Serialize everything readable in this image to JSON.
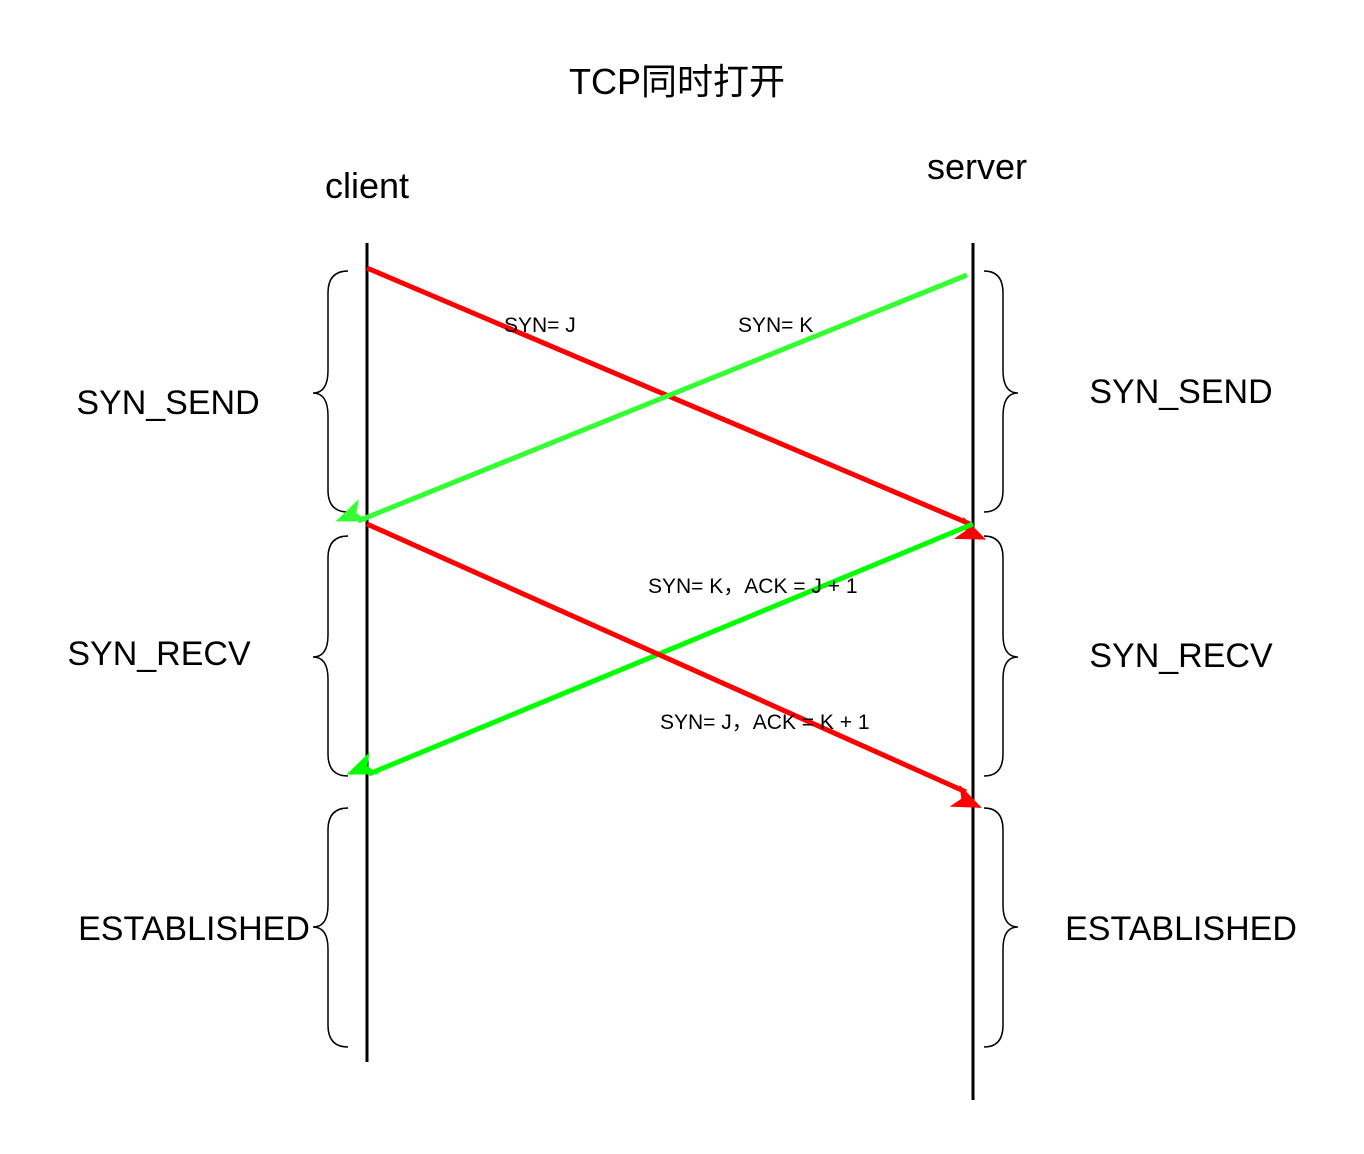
{
  "title": "TCP同时打开",
  "parties": {
    "client": "client",
    "server": "server"
  },
  "client_states": [
    "SYN_SEND",
    "SYN_RECV",
    "ESTABLISHED"
  ],
  "server_states": [
    "SYN_SEND",
    "SYN_RECV",
    "ESTABLISHED"
  ],
  "messages": [
    {
      "label": "SYN= J",
      "from": "client",
      "to": "server",
      "color": "#ff0000"
    },
    {
      "label": "SYN= K",
      "from": "server",
      "to": "client",
      "color": "#33ff33"
    },
    {
      "label": "SYN= K，ACK = J + 1",
      "from": "server",
      "to": "client",
      "color": "#00ff00"
    },
    {
      "label": "SYN= J，ACK = K + 1",
      "from": "client",
      "to": "server",
      "color": "#ff0000"
    }
  ]
}
